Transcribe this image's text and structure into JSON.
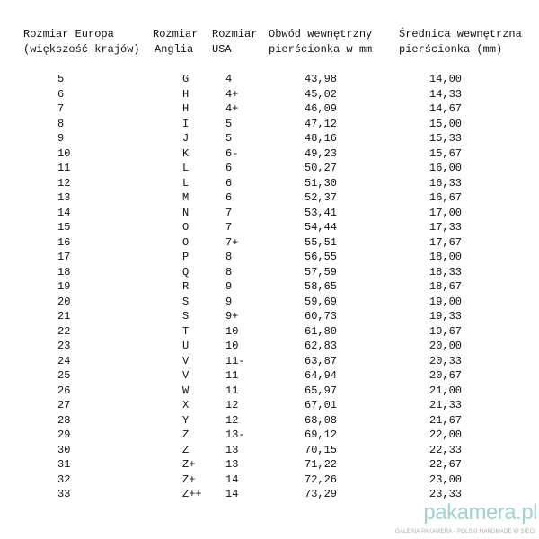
{
  "headers": {
    "eu_line1": "Rozmiar Europa",
    "eu_line2": "(większość krajów)",
    "uk_line1": "Rozmiar",
    "uk_line2": "Anglia",
    "us_line1": "Rozmiar",
    "us_line2": "USA",
    "circ_line1": "Obwód wewnętrzny",
    "circ_line2": "pierścionka w mm",
    "diam_line1": "Średnica wewnętrzna",
    "diam_line2": "pierścionka (mm)"
  },
  "rows": [
    [
      "5",
      "G",
      "4",
      "43,98",
      "14,00"
    ],
    [
      "6",
      "H",
      "4+",
      "45,02",
      "14,33"
    ],
    [
      "7",
      "H",
      "4+",
      "46,09",
      "14,67"
    ],
    [
      "8",
      "I",
      "5",
      "47,12",
      "15,00"
    ],
    [
      "9",
      "J",
      "5",
      "48,16",
      "15,33"
    ],
    [
      "10",
      "K",
      "6-",
      "49,23",
      "15,67"
    ],
    [
      "11",
      "L",
      "6",
      "50,27",
      "16,00"
    ],
    [
      "12",
      "L",
      "6",
      "51,30",
      "16,33"
    ],
    [
      "13",
      "M",
      "6",
      "52,37",
      "16,67"
    ],
    [
      "14",
      "N",
      "7",
      "53,41",
      "17,00"
    ],
    [
      "15",
      "O",
      "7",
      "54,44",
      "17,33"
    ],
    [
      "16",
      "O",
      "7+",
      "55,51",
      "17,67"
    ],
    [
      "17",
      "P",
      "8",
      "56,55",
      "18,00"
    ],
    [
      "18",
      "Q",
      "8",
      "57,59",
      "18,33"
    ],
    [
      "19",
      "R",
      "9",
      "58,65",
      "18,67"
    ],
    [
      "20",
      "S",
      "9",
      "59,69",
      "19,00"
    ],
    [
      "21",
      "S",
      "9+",
      "60,73",
      "19,33"
    ],
    [
      "22",
      "T",
      "10",
      "61,80",
      "19,67"
    ],
    [
      "23",
      "U",
      "10",
      "62,83",
      "20,00"
    ],
    [
      "24",
      "V",
      "11-",
      "63,87",
      "20,33"
    ],
    [
      "25",
      "V",
      "11",
      "64,94",
      "20,67"
    ],
    [
      "26",
      "W",
      "11",
      "65,97",
      "21,00"
    ],
    [
      "27",
      "X",
      "12",
      "67,01",
      "21,33"
    ],
    [
      "28",
      "Y",
      "12",
      "68,08",
      "21,67"
    ],
    [
      "29",
      "Z",
      "13-",
      "69,12",
      "22,00"
    ],
    [
      "30",
      "Z",
      "13",
      "70,15",
      "22,33"
    ],
    [
      "31",
      "Z+",
      "13",
      "71,22",
      "22,67"
    ],
    [
      "32",
      "Z+",
      "14",
      "72,26",
      "23,00"
    ],
    [
      "33",
      "Z++",
      "14",
      "73,29",
      "23,33"
    ]
  ],
  "watermark": {
    "logo": "pakamera.pl",
    "tagline": "GALERIA PAKAMERA - POLSKI HANDMADE W SIECI"
  }
}
